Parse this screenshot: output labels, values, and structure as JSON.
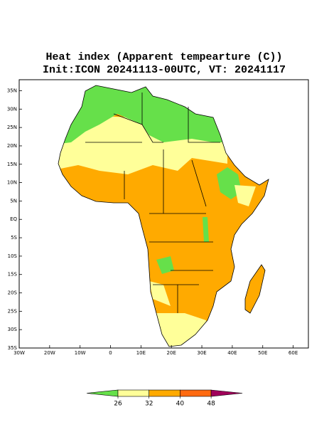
{
  "map": {
    "title": "Heat index (Apparent tempearture (C))",
    "subtitle": "Init:ICON 20241113-00UTC, VT: 20241117",
    "lat_range": [
      -35,
      38
    ],
    "lon_range": [
      -30,
      65
    ],
    "lat_ticks": [
      {
        "value": 35,
        "label": "35N"
      },
      {
        "value": 30,
        "label": "30N"
      },
      {
        "value": 25,
        "label": "25N"
      },
      {
        "value": 20,
        "label": "20N"
      },
      {
        "value": 15,
        "label": "15N"
      },
      {
        "value": 10,
        "label": "10N"
      },
      {
        "value": 5,
        "label": "5N"
      },
      {
        "value": 0,
        "label": "EQ"
      },
      {
        "value": -5,
        "label": "5S"
      },
      {
        "value": -10,
        "label": "10S"
      },
      {
        "value": -15,
        "label": "15S"
      },
      {
        "value": -20,
        "label": "20S"
      },
      {
        "value": -25,
        "label": "25S"
      },
      {
        "value": -30,
        "label": "30S"
      },
      {
        "value": -35,
        "label": "35S"
      }
    ],
    "lon_ticks": [
      {
        "value": -30,
        "label": "30W"
      },
      {
        "value": -20,
        "label": "20W"
      },
      {
        "value": -10,
        "label": "10W"
      },
      0,
      {
        "value": 10,
        "label": "10E"
      },
      {
        "value": 20,
        "label": "20E"
      },
      {
        "value": 30,
        "label": "30E"
      },
      {
        "value": 40,
        "label": "40E"
      },
      {
        "value": 50,
        "label": "50E"
      },
      {
        "value": 60,
        "label": "60E"
      }
    ],
    "colorbar": {
      "ticks": [
        26,
        32,
        40,
        48
      ],
      "colors": [
        "#66e04a",
        "#ffff99",
        "#ffaa00",
        "#ff6a10",
        "#a0005a"
      ]
    }
  }
}
